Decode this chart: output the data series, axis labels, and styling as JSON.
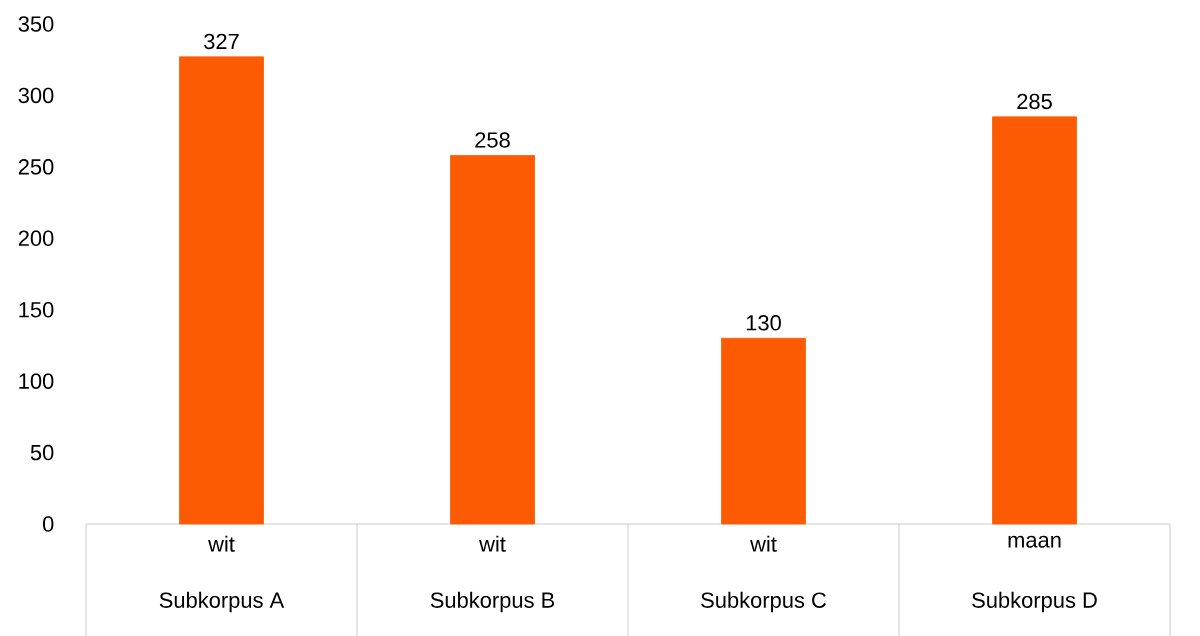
{
  "chart_data": {
    "type": "bar",
    "categories": [
      "wit",
      "wit",
      "wit",
      "maan"
    ],
    "values": [
      327,
      258,
      130,
      285
    ],
    "color": "#fc5a03",
    "ylim": [
      0,
      350
    ],
    "yticks": [
      0,
      50,
      100,
      150,
      200,
      250,
      300,
      350
    ],
    "data_labels": true,
    "annotations": [
      "Subkorpus A",
      "Subkorpus B",
      "Subkorpus C",
      "Subkorpus D"
    ]
  }
}
